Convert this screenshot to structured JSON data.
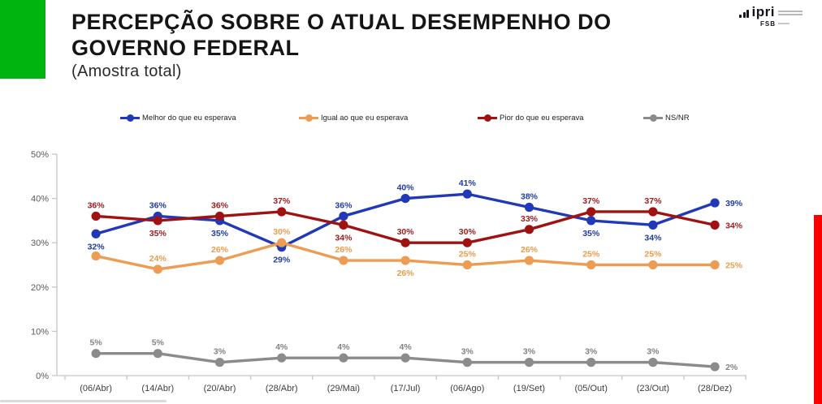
{
  "header": {
    "title": "PERCEPÇÃO SOBRE O ATUAL DESEMPENHO DO GOVERNO FEDERAL",
    "subtitle": "(Amostra total)"
  },
  "logo": {
    "brand": "ipri",
    "sub_brand": "FSB"
  },
  "decor": {
    "green_accent": "#00B40F",
    "red_accent": "#FB0000"
  },
  "chart_data": {
    "type": "line",
    "title": "PERCEPÇÃO SOBRE O ATUAL DESEMPENHO DO GOVERNO FEDERAL",
    "subtitle": "(Amostra total)",
    "categories": [
      "(06/Abr)",
      "(14/Abr)",
      "(20/Abr)",
      "(28/Abr)",
      "(29/Mai)",
      "(17/Jul)",
      "(06/Ago)",
      "(19/Set)",
      "(05/Out)",
      "(23/Out)",
      "(28/Dez)"
    ],
    "ylabel": "",
    "xlabel": "",
    "ylim": [
      0,
      50
    ],
    "yticks": [
      0,
      10,
      20,
      30,
      40,
      50
    ],
    "ytick_labels": [
      "0%",
      "10%",
      "20%",
      "30%",
      "40%",
      "50%"
    ],
    "grid": false,
    "legend_position": "top",
    "axis_color": "#C6C6C6",
    "tick_label_color": "#595959",
    "category_label_color": "#3d3d3d",
    "series": [
      {
        "name": "Melhor do que eu esperava",
        "color": "#2138B8",
        "label_color": "#1F3BA6",
        "values": [
          32,
          36,
          35,
          29,
          36,
          40,
          41,
          38,
          35,
          34,
          39
        ],
        "label_pos": [
          "below",
          "above",
          "below",
          "below",
          "above",
          "above",
          "above",
          "above",
          "below",
          "below",
          "right"
        ]
      },
      {
        "name": "Igual ao que eu esperava",
        "color": "#EC9D53",
        "label_color": "#E79C4F",
        "values": [
          27,
          24,
          26,
          30,
          26,
          26,
          25,
          26,
          25,
          25,
          25
        ],
        "label_pos": [
          null,
          "above",
          "above",
          "above",
          "above",
          "below",
          "above",
          "above",
          "above",
          "above",
          "right"
        ]
      },
      {
        "name": "Pior do que eu esperava",
        "color": "#A01212",
        "label_color": "#9E1B1B",
        "values": [
          36,
          35,
          36,
          37,
          34,
          30,
          30,
          33,
          37,
          37,
          34
        ],
        "label_pos": [
          "above",
          "below",
          "above",
          "above",
          "below",
          "above",
          "above",
          "above",
          "above",
          "above",
          "right"
        ]
      },
      {
        "name": "NS/NR",
        "color": "#8B8B8B",
        "label_color": "#838383",
        "values": [
          5,
          5,
          3,
          4,
          4,
          4,
          3,
          3,
          3,
          3,
          2
        ],
        "label_pos": [
          "above",
          "above",
          "above",
          "above",
          "above",
          "above",
          "above",
          "above",
          "above",
          "above",
          "right"
        ]
      }
    ]
  }
}
